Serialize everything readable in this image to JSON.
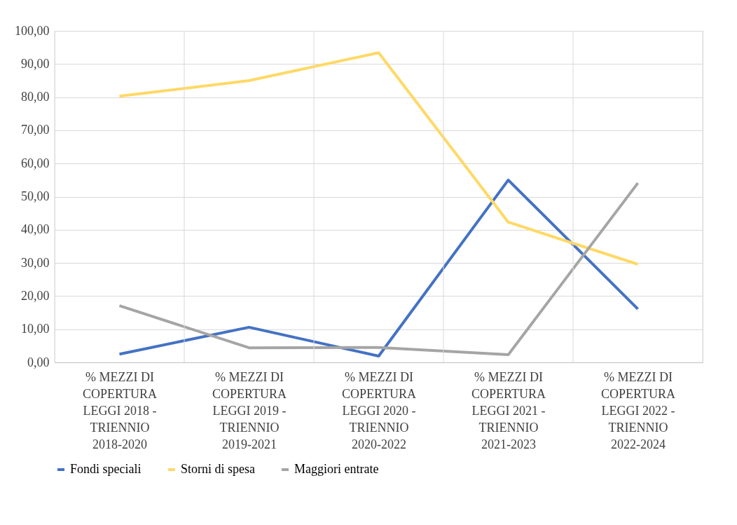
{
  "chart_data": {
    "type": "line",
    "categories": [
      "% MEZZI DI COPERTURA LEGGI 2018 - TRIENNIO 2018-2020",
      "% MEZZI DI COPERTURA LEGGI 2019 - TRIENNIO 2019-2021",
      "% MEZZI DI COPERTURA LEGGI 2020 - TRIENNIO 2020-2022",
      "% MEZZI DI COPERTURA LEGGI 2021 - TRIENNIO 2021-2023",
      "% MEZZI DI COPERTURA LEGGI 2022 - TRIENNIO 2022-2024"
    ],
    "series": [
      {
        "name": "Fondi speciali",
        "color": "#4472c4",
        "values": [
          2.5,
          10.6,
          1.9,
          55.0,
          16.1
        ]
      },
      {
        "name": "Storni di spesa",
        "color": "#ffd966",
        "values": [
          80.3,
          85.0,
          93.4,
          42.3,
          29.6
        ]
      },
      {
        "name": "Maggiori entrate",
        "color": "#a5a5a5",
        "values": [
          17.1,
          4.4,
          4.5,
          2.3,
          54.1
        ]
      }
    ],
    "ylim": [
      0,
      100
    ],
    "yticks": [
      {
        "value": 0,
        "label": "0,00"
      },
      {
        "value": 10,
        "label": "10,00"
      },
      {
        "value": 20,
        "label": "20,00"
      },
      {
        "value": 30,
        "label": "30,00"
      },
      {
        "value": 40,
        "label": "40,00"
      },
      {
        "value": 50,
        "label": "50,00"
      },
      {
        "value": 60,
        "label": "60,00"
      },
      {
        "value": 70,
        "label": "70,00"
      },
      {
        "value": 80,
        "label": "80,00"
      },
      {
        "value": 90,
        "label": "90,00"
      },
      {
        "value": 100,
        "label": "100,00"
      }
    ],
    "grid": true,
    "legend": "bottom",
    "marker": "none",
    "line_style": "solid"
  }
}
